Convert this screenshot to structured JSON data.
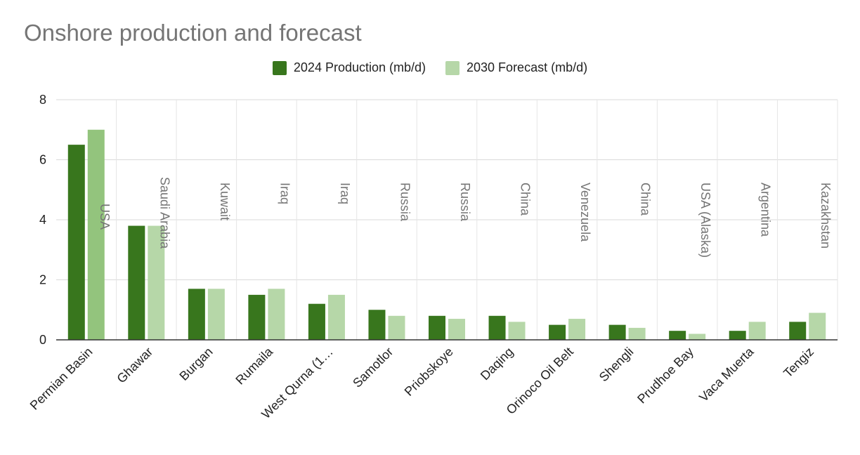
{
  "chart_data": {
    "type": "bar",
    "title": "Onshore production and forecast",
    "xlabel": "",
    "ylabel": "",
    "ylim": [
      0,
      8
    ],
    "yticks": [
      0,
      2,
      4,
      6,
      8
    ],
    "grid": true,
    "legend_position": "top-center",
    "categories": [
      "Permian Basin",
      "Ghawar",
      "Burgan",
      "Rumaila",
      "West Qurna (1…",
      "Samotlor",
      "Priobskoye",
      "Daqing",
      "Orinoco Oil Belt",
      "Shengli",
      "Prudhoe Bay",
      "Vaca Muerta",
      "Tengiz"
    ],
    "annotations": [
      "USA",
      "Saudi Arabia",
      "Kuwait",
      "Iraq",
      "Iraq",
      "Russia",
      "Russia",
      "China",
      "Venezuela",
      "China",
      "USA (Alaska)",
      "Argentina",
      "Kazakhstan"
    ],
    "series": [
      {
        "name": "2024 Production (mb/d)",
        "color": "#38761d",
        "values": [
          6.5,
          3.8,
          1.7,
          1.5,
          1.2,
          1.0,
          0.8,
          0.8,
          0.5,
          0.5,
          0.3,
          0.3,
          0.6
        ]
      },
      {
        "name": "2030 Forecast (mb/d)",
        "color": "#b6d7a8",
        "values": [
          7.0,
          3.8,
          1.7,
          1.7,
          1.5,
          0.8,
          0.7,
          0.6,
          0.7,
          0.4,
          0.2,
          0.6,
          0.9
        ]
      }
    ],
    "highlight_bar": {
      "series": 1,
      "index": 0,
      "color": "#93c47d"
    }
  }
}
